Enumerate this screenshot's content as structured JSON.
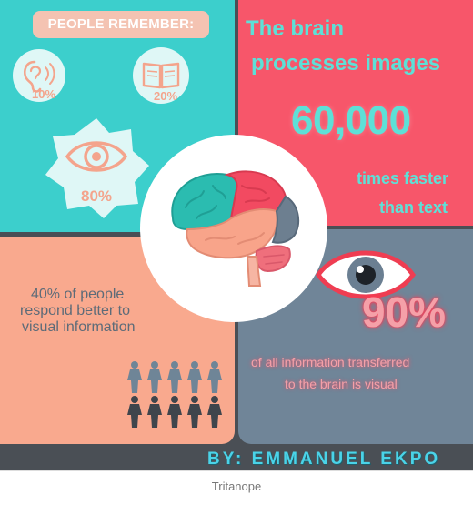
{
  "remember": {
    "title": "PEOPLE REMEMBER:",
    "hearing_pct": "10%",
    "reading_pct": "20%",
    "seeing_pct": "80%"
  },
  "brain_speed": {
    "line1": "The brain",
    "line2": "processes images",
    "number": "60,000",
    "line3": "times faster",
    "line4": "than text"
  },
  "respond": {
    "line1": "40% of people",
    "line2": "respond better to",
    "line3": "visual information"
  },
  "visual_info": {
    "percent": "90%",
    "line1": "of all information transferred",
    "line2": "to the brain is visual"
  },
  "byline": "BY: EMMANUEL EKPO",
  "caption": "Tritanope",
  "colors": {
    "teal": "#3ccfcc",
    "coral_red": "#f7566a",
    "peach": "#f9a98e",
    "slate": "#708598",
    "dark": "#4a4f55"
  },
  "icons": [
    "ear-icon",
    "book-icon",
    "eye-icon",
    "brain-illustration",
    "large-eye-icon",
    "people-icon"
  ]
}
